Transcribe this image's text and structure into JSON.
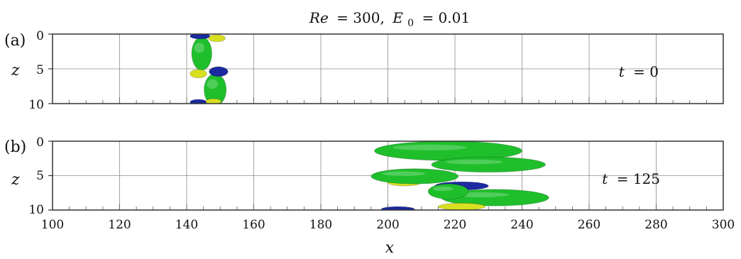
{
  "figure": {
    "title": {
      "re_symbol": "Re",
      "re_value": "= 300,",
      "e_symbol": "E",
      "e_subscript": "0",
      "e_value": "= 0.01"
    },
    "xlabel": "x",
    "ylabel": "z"
  },
  "colors": {
    "green": "#1fbf2c",
    "blue": "#1b2aa0",
    "yellow": "#d9e021",
    "grid": "#8c8c8c",
    "frame": "#333333"
  },
  "chart_data": [
    {
      "type": "isosurface-snapshot",
      "panel": "(a)",
      "annotation": {
        "symbol": "t",
        "value": "= 0"
      },
      "x_range": [
        100,
        300
      ],
      "z_range": [
        0,
        10
      ],
      "z_ticks": [
        "0",
        "5",
        "10"
      ],
      "grid": true,
      "structures": [
        {
          "color": "green",
          "x": 144.5,
          "z": 2.8,
          "rx": 3.0,
          "rz": 2.4
        },
        {
          "color": "green",
          "x": 148.5,
          "z": 8.0,
          "rx": 3.3,
          "rz": 2.3
        },
        {
          "color": "blue",
          "x": 144.0,
          "z": 0.3,
          "rx": 3.0,
          "rz": 0.4
        },
        {
          "color": "yellow",
          "x": 149.0,
          "z": 0.6,
          "rx": 2.5,
          "rz": 0.5
        },
        {
          "color": "yellow",
          "x": 143.5,
          "z": 5.7,
          "rx": 2.5,
          "rz": 0.6
        },
        {
          "color": "blue",
          "x": 149.5,
          "z": 5.4,
          "rx": 2.8,
          "rz": 0.7
        },
        {
          "color": "blue",
          "x": 143.5,
          "z": 9.8,
          "rx": 2.5,
          "rz": 0.4
        },
        {
          "color": "yellow",
          "x": 148.0,
          "z": 9.7,
          "rx": 2.3,
          "rz": 0.4
        }
      ]
    },
    {
      "type": "isosurface-snapshot",
      "panel": "(b)",
      "annotation": {
        "symbol": "t",
        "value": "= 125"
      },
      "x_range": [
        100,
        300
      ],
      "z_range": [
        0,
        10
      ],
      "z_ticks": [
        "0",
        "5",
        "10"
      ],
      "x_ticks": [
        "100",
        "120",
        "140",
        "160",
        "180",
        "200",
        "220",
        "240",
        "260",
        "280",
        "300"
      ],
      "grid": true,
      "structures": [
        {
          "color": "blue",
          "x": 206.0,
          "z": 1.0,
          "rx": 6.0,
          "rz": 0.6
        },
        {
          "color": "yellow",
          "x": 214.0,
          "z": 0.9,
          "rx": 9.0,
          "rz": 0.9
        },
        {
          "color": "green",
          "x": 218.0,
          "z": 1.4,
          "rx": 22.0,
          "rz": 1.4
        },
        {
          "color": "green",
          "x": 230.0,
          "z": 3.4,
          "rx": 17.0,
          "rz": 1.1
        },
        {
          "color": "blue",
          "x": 207.0,
          "z": 5.3,
          "rx": 6.0,
          "rz": 0.7
        },
        {
          "color": "yellow",
          "x": 205.0,
          "z": 6.0,
          "rx": 5.0,
          "rz": 0.5
        },
        {
          "color": "green",
          "x": 208.0,
          "z": 5.1,
          "rx": 13.0,
          "rz": 1.1
        },
        {
          "color": "blue",
          "x": 222.0,
          "z": 6.5,
          "rx": 8.0,
          "rz": 0.6
        },
        {
          "color": "green",
          "x": 232.0,
          "z": 8.2,
          "rx": 16.0,
          "rz": 1.2
        },
        {
          "color": "green",
          "x": 218.0,
          "z": 7.3,
          "rx": 6.0,
          "rz": 1.1
        },
        {
          "color": "yellow",
          "x": 222.0,
          "z": 9.5,
          "rx": 7.0,
          "rz": 0.5
        },
        {
          "color": "blue",
          "x": 203.0,
          "z": 9.9,
          "rx": 5.0,
          "rz": 0.4
        }
      ]
    }
  ]
}
